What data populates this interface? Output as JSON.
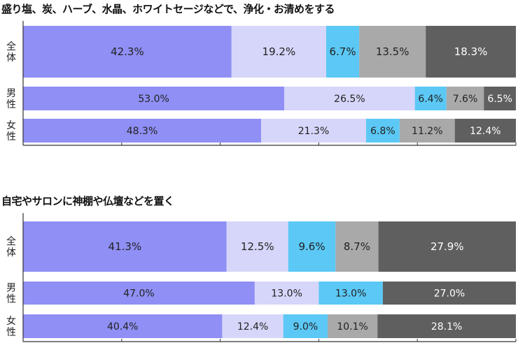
{
  "chart_data": [
    {
      "type": "bar",
      "orientation": "horizontal",
      "stacked": true,
      "title": "盛り塩、炭、ハーブ、水晶、ホワイトセージなどで、浄化・お清めをする",
      "categories": [
        "全体",
        "男性",
        "女性"
      ],
      "series": [
        {
          "values": [
            42.3,
            53.0,
            48.3
          ],
          "color": "#8f8ff5",
          "label_color": "#222222"
        },
        {
          "values": [
            19.2,
            26.5,
            21.3
          ],
          "color": "#d6d6fa",
          "label_color": "#222222"
        },
        {
          "values": [
            6.7,
            6.4,
            6.8
          ],
          "color": "#5bc8f5",
          "label_color": "#222222"
        },
        {
          "values": [
            13.5,
            7.6,
            11.2
          ],
          "color": "#a9a9a9",
          "label_color": "#222222"
        },
        {
          "values": [
            18.3,
            6.5,
            12.4
          ],
          "color": "#5f5f5f",
          "label_color": "#ffffff"
        }
      ],
      "value_suffix": "%",
      "xlim": [
        0,
        100
      ],
      "legend": "none"
    },
    {
      "type": "bar",
      "orientation": "horizontal",
      "stacked": true,
      "title": "自宅やサロンに神棚や仏壇などを置く",
      "categories": [
        "全体",
        "男性",
        "女性"
      ],
      "series": [
        {
          "values": [
            41.3,
            47.0,
            40.4
          ],
          "color": "#8f8ff5",
          "label_color": "#222222"
        },
        {
          "values": [
            12.5,
            13.0,
            12.4
          ],
          "color": "#d6d6fa",
          "label_color": "#222222"
        },
        {
          "values": [
            9.6,
            13.0,
            9.0
          ],
          "color": "#5bc8f5",
          "label_color": "#222222"
        },
        {
          "values": [
            8.7,
            0,
            10.1
          ],
          "color": "#a9a9a9",
          "label_color": "#222222"
        },
        {
          "values": [
            27.9,
            27.0,
            28.1
          ],
          "color": "#5f5f5f",
          "label_color": "#ffffff"
        }
      ],
      "value_suffix": "%",
      "xlim": [
        0,
        100
      ],
      "legend": "none"
    }
  ]
}
